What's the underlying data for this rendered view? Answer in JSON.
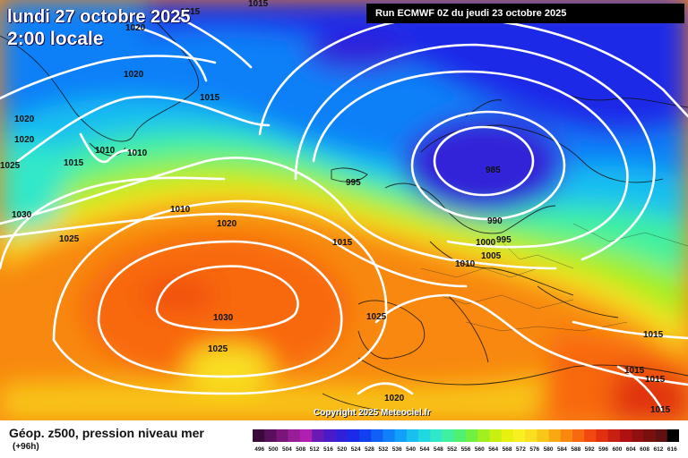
{
  "header": {
    "date": "lundi 27 octobre 2025",
    "time": "2:00 locale",
    "run": "Run ECMWF 0Z du jeudi 23 octobre 2025"
  },
  "footer": {
    "copyright": "Copyright 2025 Meteociel.fr",
    "legend_title": "Géop. z500, pression niveau mer",
    "legend_sub": "(+96h)"
  },
  "colors": {
    "z500_scale": [
      "#3a0a3a",
      "#5a0f5a",
      "#7a157a",
      "#991c99",
      "#b020b0",
      "#6a1ab4",
      "#4a1ac8",
      "#3020d8",
      "#1a2ae8",
      "#1040f0",
      "#1060f5",
      "#1080f8",
      "#10a0f8",
      "#18c0f0",
      "#20d8e0",
      "#30e8c8",
      "#40f0a0",
      "#50f070",
      "#70f040",
      "#a0f020",
      "#c8f010",
      "#e8f010",
      "#f8f020",
      "#f8e020",
      "#f8c818",
      "#f8a810",
      "#f88810",
      "#f86810",
      "#f04810",
      "#e03010",
      "#c82010",
      "#b01010",
      "#901010",
      "#781010",
      "#601010",
      "#000000"
    ]
  },
  "scale_labels": [
    "496",
    "500",
    "504",
    "508",
    "512",
    "516",
    "520",
    "524",
    "528",
    "532",
    "536",
    "540",
    "544",
    "548",
    "552",
    "556",
    "560",
    "564",
    "568",
    "572",
    "576",
    "580",
    "584",
    "588",
    "592",
    "596",
    "600",
    "604",
    "608",
    "612",
    "616"
  ],
  "isobars": [
    {
      "label": "1015",
      "name": "isobar-label"
    },
    {
      "label": "1015",
      "name": "isobar-label"
    },
    {
      "label": "1020",
      "name": "isobar-label"
    },
    {
      "label": "1020",
      "name": "isobar-label"
    },
    {
      "label": "1015",
      "name": "isobar-label"
    },
    {
      "label": "1020",
      "name": "isobar-label"
    },
    {
      "label": "1020",
      "name": "isobar-label"
    },
    {
      "label": "1010",
      "name": "isobar-label"
    },
    {
      "label": "1010",
      "name": "isobar-label"
    },
    {
      "label": "1015",
      "name": "isobar-label"
    },
    {
      "label": "1025",
      "name": "isobar-label"
    },
    {
      "label": "1030",
      "name": "isobar-label"
    },
    {
      "label": "1025",
      "name": "isobar-label"
    },
    {
      "label": "1010",
      "name": "isobar-label"
    },
    {
      "label": "1020",
      "name": "isobar-label"
    },
    {
      "label": "995",
      "name": "isobar-label"
    },
    {
      "label": "985",
      "name": "isobar-label"
    },
    {
      "label": "990",
      "name": "isobar-label"
    },
    {
      "label": "995",
      "name": "isobar-label"
    },
    {
      "label": "1000",
      "name": "isobar-label"
    },
    {
      "label": "1005",
      "name": "isobar-label"
    },
    {
      "label": "1010",
      "name": "isobar-label"
    },
    {
      "label": "1015",
      "name": "isobar-label"
    },
    {
      "label": "1025",
      "name": "isobar-label"
    },
    {
      "label": "1030",
      "name": "isobar-label"
    },
    {
      "label": "1025",
      "name": "isobar-label"
    },
    {
      "label": "1020",
      "name": "isobar-label"
    },
    {
      "label": "1015",
      "name": "isobar-label"
    },
    {
      "label": "1015",
      "name": "isobar-label"
    },
    {
      "label": "1015",
      "name": "isobar-label"
    },
    {
      "label": "1015",
      "name": "isobar-label"
    }
  ]
}
